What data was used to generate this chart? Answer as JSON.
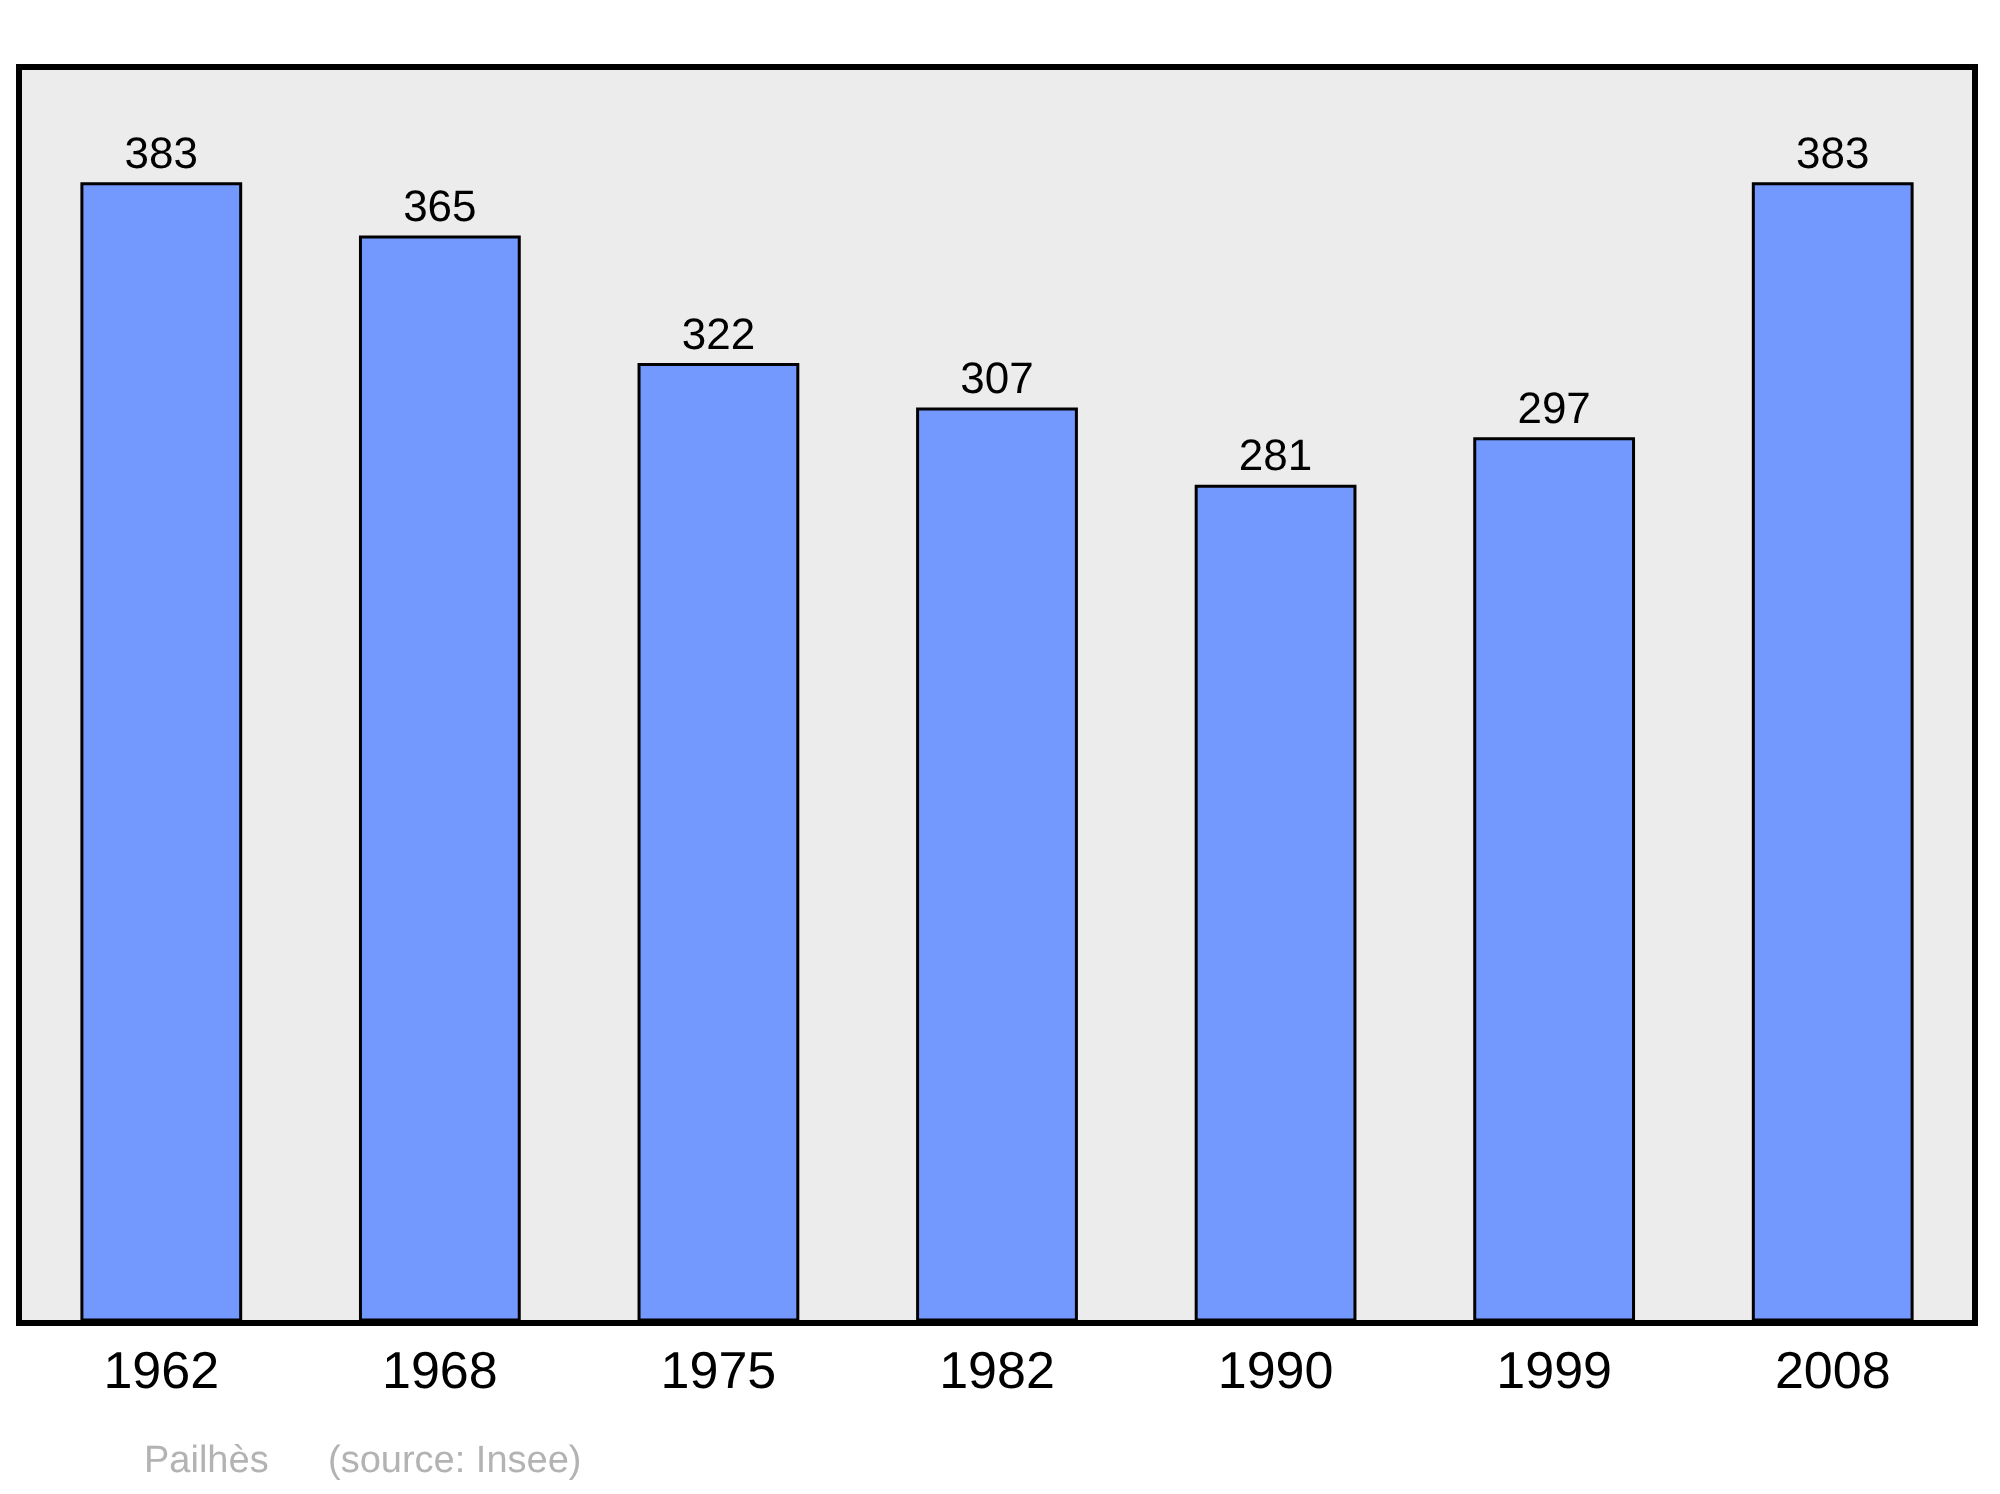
{
  "chart_data": {
    "type": "bar",
    "categories": [
      "1962",
      "1968",
      "1975",
      "1982",
      "1990",
      "1999",
      "2008"
    ],
    "values": [
      383,
      365,
      322,
      307,
      281,
      297,
      383
    ],
    "color": "#7399ff",
    "data_labels": true,
    "grid": false,
    "legend": false,
    "annotations": [
      "Pailhès",
      "(source: Insee)"
    ]
  }
}
